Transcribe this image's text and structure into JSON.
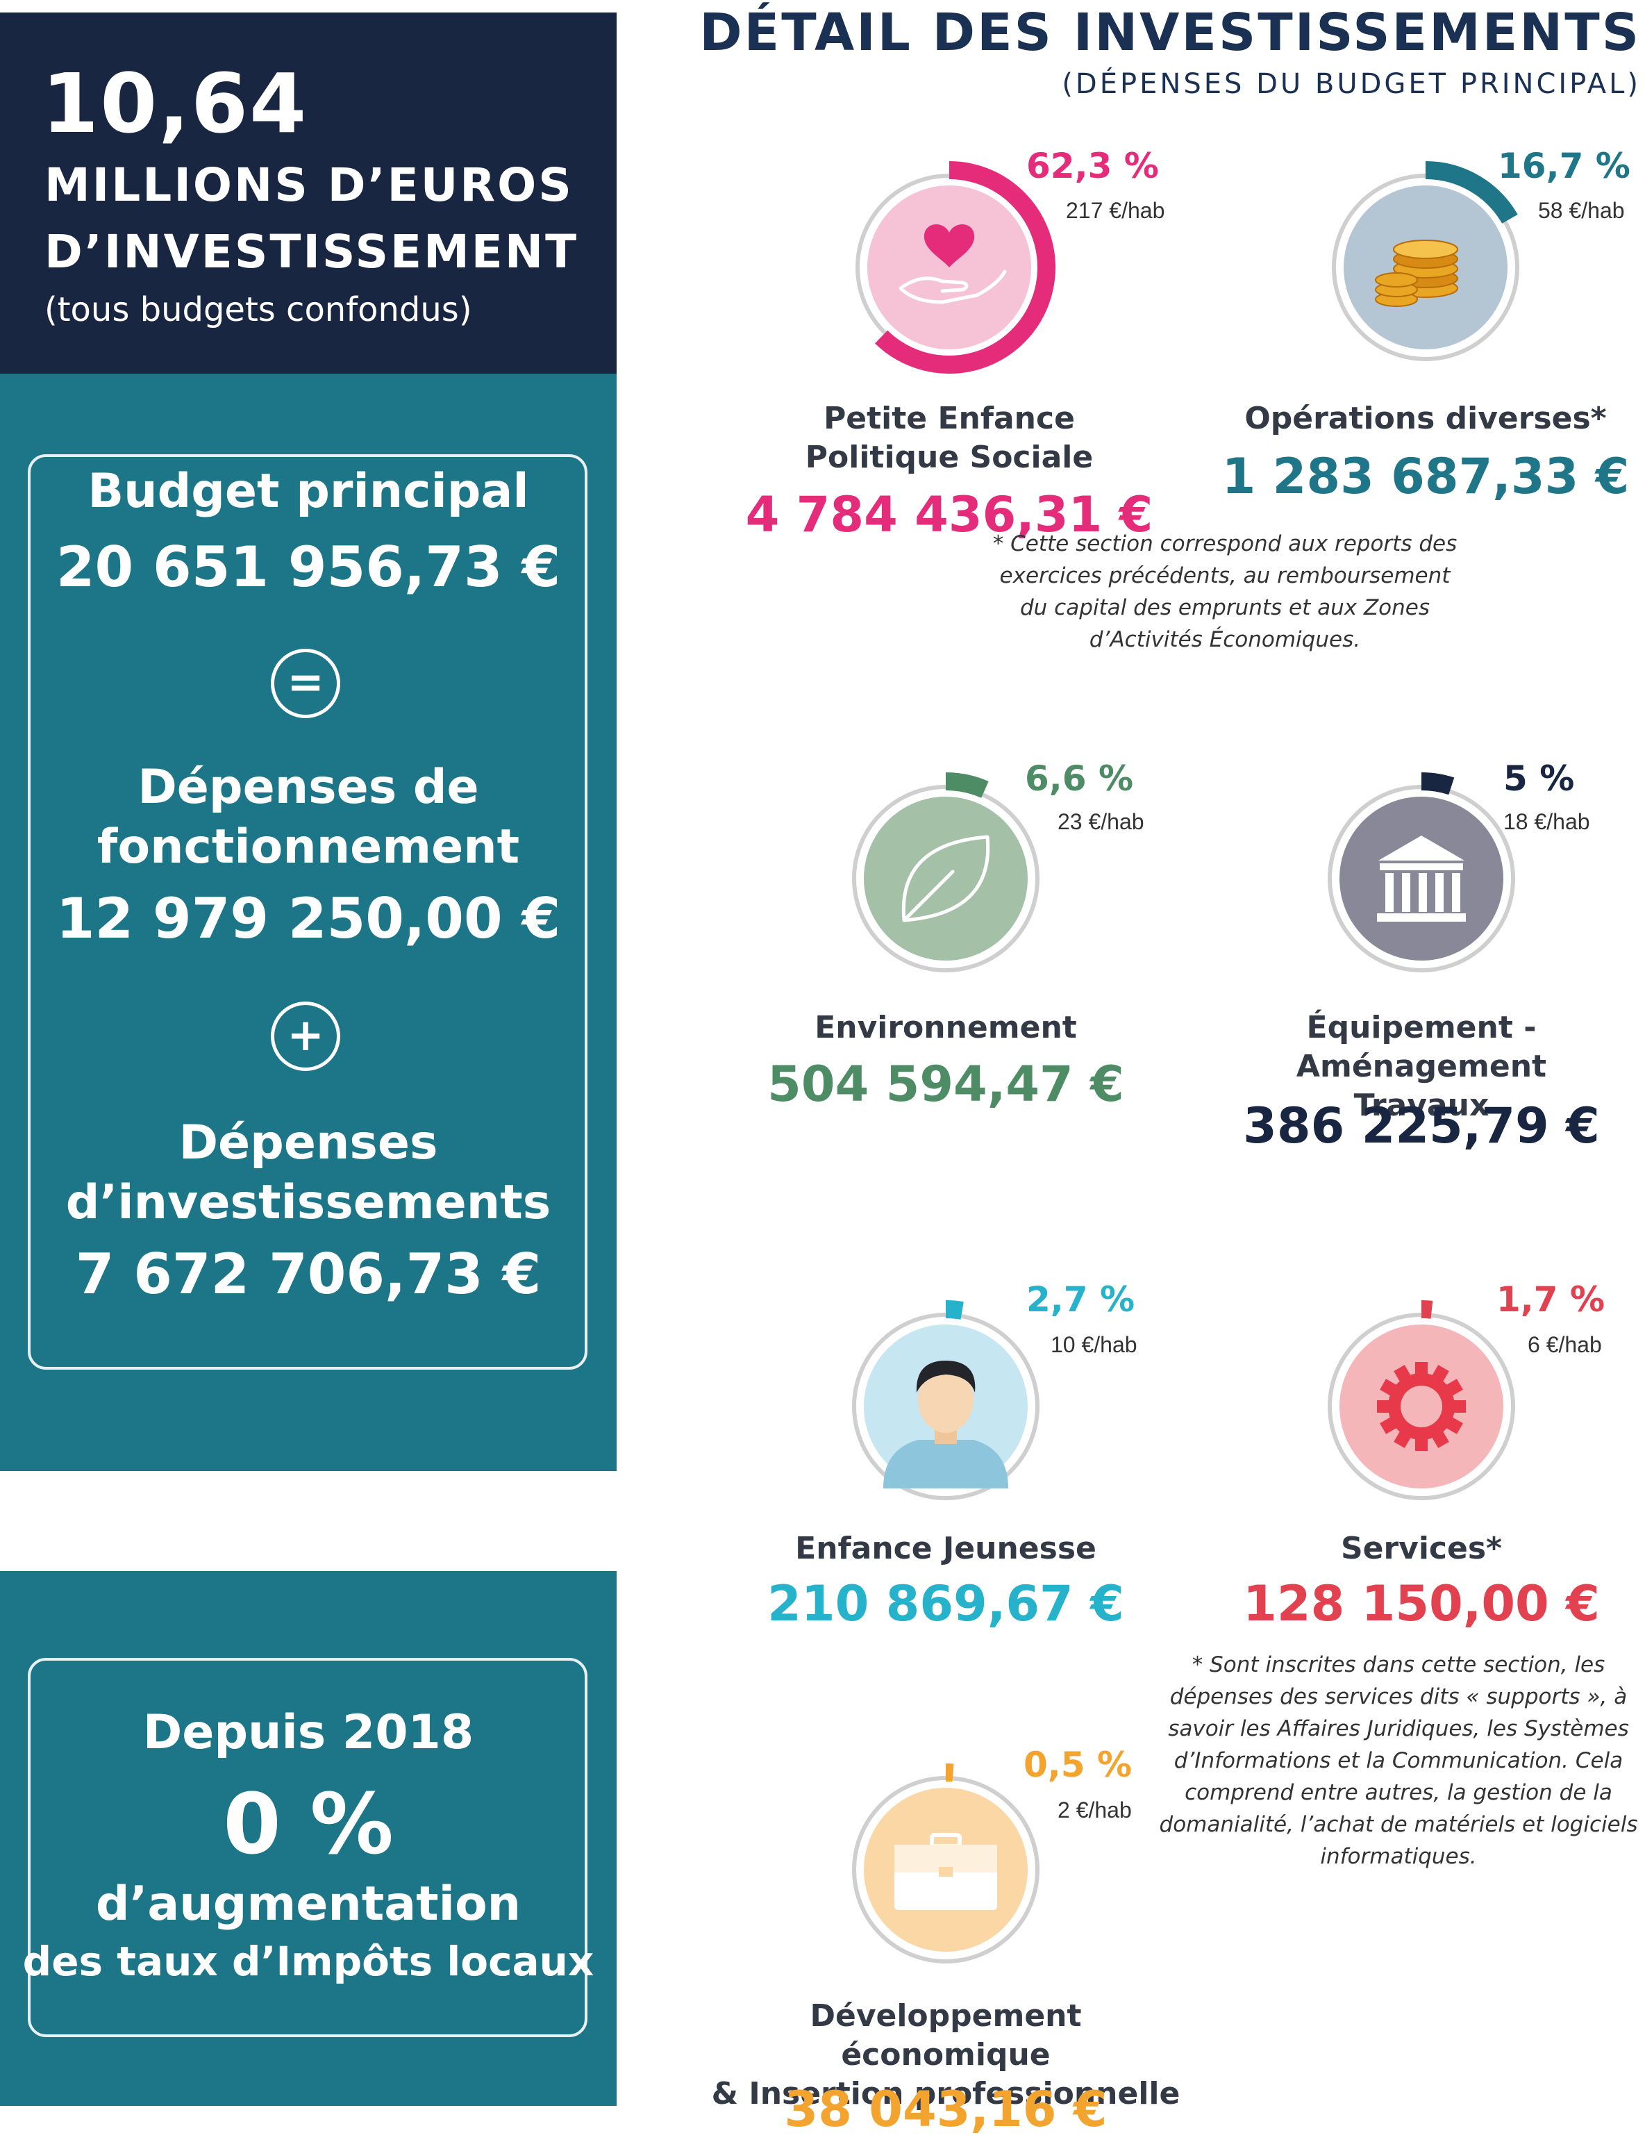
{
  "hero": {
    "number": "10,64",
    "line1": "MILLIONS D’EUROS",
    "line2": "D’INVESTISSEMENT",
    "note": "(tous budgets confondus)"
  },
  "budget_card": {
    "title": "Budget principal",
    "total": "20 651 956,73 €",
    "equals_symbol": "=",
    "plus_symbol": "+",
    "fonctionnement_line1": "Dépenses de",
    "fonctionnement_line2": "fonctionnement",
    "fonctionnement_amount": "12 979 250,00 €",
    "investissement_line1": "Dépenses",
    "investissement_line2": "d’investissements",
    "investissement_amount": "7 672 706,73 €"
  },
  "tax_card": {
    "since": "Depuis 2018",
    "value": "0 %",
    "line1": "d’augmentation",
    "line2": "des taux d’Impôts locaux"
  },
  "detail": {
    "title": "DÉTAIL DES INVESTISSEMENTS",
    "subtitle": "(DÉPENSES DU BUDGET PRINCIPAL)",
    "footnote_operations": "* Cette section correspond aux reports des exercices précédents, au remboursement du capital des emprunts et aux Zones d’Activités Économiques.",
    "footnote_services": "* Sont inscrites dans cette section, les dépenses des services dits « supports », à savoir les Affaires Juridiques, les Systèmes d’Informations et la Communication. Cela comprend entre autres, la gestion de la domanialité, l’achat de matériels et logiciels informatiques."
  },
  "chart_data": {
    "type": "pie",
    "title": "DÉTAIL DES INVESTISSEMENTS",
    "subtitle": "(DÉPENSES DU BUDGET PRINCIPAL)",
    "categories": [
      {
        "label": "Petite Enfance Politique Sociale",
        "label_lines": [
          "Petite Enfance",
          "Politique Sociale"
        ],
        "percent": 62.3,
        "percent_label": "62,3 %",
        "per_hab_label": "217 €/hab",
        "per_hab": 217,
        "amount_label": "4 784 436,31 €",
        "amount": 4784436.31,
        "color": "#e52c7a",
        "icon": "heart-hand-icon"
      },
      {
        "label": "Opérations diverses*",
        "label_lines": [
          "Opérations diverses*"
        ],
        "percent": 16.7,
        "percent_label": "16,7 %",
        "per_hab_label": "58 €/hab",
        "per_hab": 58,
        "amount_label": "1 283 687,33 €",
        "amount": 1283687.33,
        "color": "#1f7688",
        "icon": "coins-icon"
      },
      {
        "label": "Environnement",
        "label_lines": [
          "Environnement"
        ],
        "percent": 6.6,
        "percent_label": "6,6 %",
        "per_hab_label": "23 €/hab",
        "per_hab": 23,
        "amount_label": "504 594,47 €",
        "amount": 504594.47,
        "color": "#4e8c66",
        "icon": "leaf-icon"
      },
      {
        "label": "Équipement - Aménagement Travaux",
        "label_lines": [
          "Équipement - Aménagement",
          "Travaux"
        ],
        "percent": 5,
        "percent_label": "5 %",
        "per_hab_label": "18 €/hab",
        "per_hab": 18,
        "amount_label": "386 225,79 €",
        "amount": 386225.79,
        "color": "#182641",
        "icon": "building-icon"
      },
      {
        "label": "Enfance Jeunesse",
        "label_lines": [
          "Enfance Jeunesse"
        ],
        "percent": 2.7,
        "percent_label": "2,7 %",
        "per_hab_label": "10 €/hab",
        "per_hab": 10,
        "amount_label": "210 869,67 €",
        "amount": 210869.67,
        "color": "#26b2cb",
        "icon": "person-icon"
      },
      {
        "label": "Services*",
        "label_lines": [
          "Services*"
        ],
        "percent": 1.7,
        "percent_label": "1,7 %",
        "per_hab_label": "6 €/hab",
        "per_hab": 6,
        "amount_label": "128 150,00 €",
        "amount": 128150.0,
        "color": "#e2414f",
        "icon": "gear-icon"
      },
      {
        "label": "Développement économique & Insertion professionnelle",
        "label_lines": [
          "Développement économique",
          "& Insertion professionnelle"
        ],
        "percent": 0.5,
        "percent_label": "0,5 %",
        "per_hab_label": "2 €/hab",
        "per_hab": 2,
        "amount_label": "38 043,16 €",
        "amount": 38043.16,
        "color": "#f2a42f",
        "icon": "briefcase-icon"
      }
    ]
  }
}
